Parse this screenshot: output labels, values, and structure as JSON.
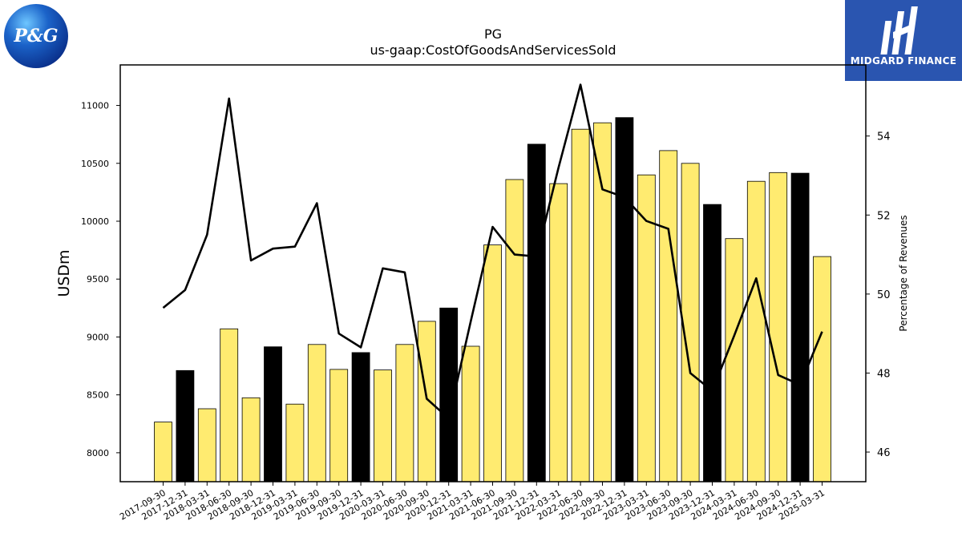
{
  "logos": {
    "left_text": "P&G",
    "right_text": "MIDGARD FINANCE"
  },
  "colors": {
    "bar_yellow": "#ffeb70",
    "bar_black": "#000000",
    "line": "#000000",
    "brand_blue": "#2a55b0"
  },
  "chart_data": {
    "type": "bar",
    "title": "PG",
    "subtitle": "us-gaap:CostOfGoodsAndServicesSold",
    "ylabel": "USDm",
    "y2label": "Percentage of Revenues",
    "ylim": [
      7750,
      11350
    ],
    "y2lim": [
      45.25,
      55.8
    ],
    "yticks": [
      8000,
      8500,
      9000,
      9500,
      10000,
      10500,
      11000
    ],
    "y2ticks": [
      46,
      48,
      50,
      52,
      54
    ],
    "categories": [
      "2017-09-30",
      "2017-12-31",
      "2018-03-31",
      "2018-06-30",
      "2018-09-30",
      "2018-12-31",
      "2019-03-31",
      "2019-06-30",
      "2019-09-30",
      "2019-12-31",
      "2020-03-31",
      "2020-06-30",
      "2020-09-30",
      "2020-12-31",
      "2021-03-31",
      "2021-06-30",
      "2021-09-30",
      "2021-12-31",
      "2022-03-31",
      "2022-06-30",
      "2022-09-30",
      "2022-12-31",
      "2023-03-31",
      "2023-06-30",
      "2023-09-30",
      "2023-12-31",
      "2024-03-31",
      "2024-06-30",
      "2024-09-30",
      "2024-12-31",
      "2025-03-31"
    ],
    "series": [
      {
        "type": "bar",
        "values": [
          8265,
          8710,
          8380,
          9070,
          8475,
          8915,
          8420,
          8935,
          8720,
          8865,
          8715,
          8935,
          9135,
          9250,
          8920,
          9795,
          10360,
          10665,
          10325,
          10795,
          10850,
          10895,
          10400,
          10610,
          10500,
          10145,
          9850,
          10345,
          10420,
          10415,
          9695
        ],
        "highlight": [
          false,
          true,
          false,
          false,
          false,
          true,
          false,
          false,
          false,
          true,
          false,
          false,
          false,
          true,
          false,
          false,
          false,
          true,
          false,
          false,
          false,
          true,
          false,
          false,
          false,
          true,
          false,
          false,
          false,
          true,
          false
        ]
      },
      {
        "type": "line",
        "values": [
          49.65,
          50.1,
          51.5,
          54.95,
          50.85,
          51.15,
          51.2,
          52.3,
          49.0,
          48.65,
          50.65,
          50.55,
          47.35,
          46.85,
          49.3,
          51.7,
          51.0,
          50.95,
          53.2,
          55.3,
          52.65,
          52.45,
          51.85,
          51.65,
          48.0,
          47.55,
          48.95,
          50.4,
          47.95,
          47.7,
          49.05
        ]
      }
    ]
  }
}
